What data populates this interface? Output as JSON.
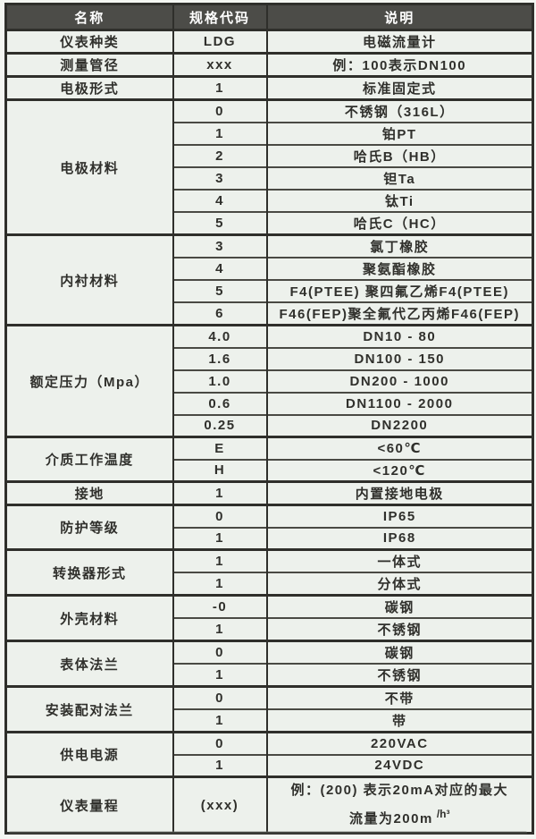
{
  "colors": {
    "header_bg": "#4c4c48",
    "header_text": "#ffffff",
    "cell_bg": "#edf1ec",
    "text": "#30302c",
    "border": "#2f2f2b"
  },
  "table": {
    "headers": [
      "名称",
      "规格代码",
      "说明"
    ],
    "groups": [
      {
        "name": "仪表种类",
        "rows": [
          [
            "LDG",
            "电磁流量计"
          ]
        ]
      },
      {
        "name": "测量管径",
        "rows": [
          [
            "xxx",
            "例：100表示DN100"
          ]
        ]
      },
      {
        "name": "电极形式",
        "rows": [
          [
            "1",
            "标准固定式"
          ]
        ]
      },
      {
        "name": "电极材料",
        "rows": [
          [
            "0",
            "不锈钢（316L）"
          ],
          [
            "1",
            "铂PT"
          ],
          [
            "2",
            "哈氏B（HB）"
          ],
          [
            "3",
            "钽Ta"
          ],
          [
            "4",
            "钛Ti"
          ],
          [
            "5",
            "哈氏C（HC）"
          ]
        ]
      },
      {
        "name": "内衬材料",
        "rows": [
          [
            "3",
            "氯丁橡胶"
          ],
          [
            "4",
            "聚氨酯橡胶"
          ],
          [
            "5",
            "F4(PTEE) 聚四氟乙烯F4(PTEE)"
          ],
          [
            "6",
            "F46(FEP)聚全氟代乙丙烯F46(FEP)"
          ]
        ]
      },
      {
        "name": "额定压力（Mpa）",
        "rows": [
          [
            "4.0",
            "DN10 - 80"
          ],
          [
            "1.6",
            "DN100 - 150"
          ],
          [
            "1.0",
            "DN200 - 1000"
          ],
          [
            "0.6",
            "DN1100 - 2000"
          ],
          [
            "0.25",
            "DN2200"
          ]
        ]
      },
      {
        "name": "介质工作温度",
        "rows": [
          [
            "E",
            "<60℃"
          ],
          [
            "H",
            "<120℃"
          ]
        ]
      },
      {
        "name": "接地",
        "rows": [
          [
            "1",
            "内置接地电极"
          ]
        ]
      },
      {
        "name": "防护等级",
        "rows": [
          [
            "0",
            "IP65"
          ],
          [
            "1",
            "IP68"
          ]
        ]
      },
      {
        "name": "转换器形式",
        "rows": [
          [
            "1",
            "一体式"
          ],
          [
            "1",
            "分体式"
          ]
        ]
      },
      {
        "name": "外壳材料",
        "rows": [
          [
            "-0",
            "碳钢"
          ],
          [
            "1",
            "不锈钢"
          ]
        ]
      },
      {
        "name": "表体法兰",
        "rows": [
          [
            "0",
            "碳钢"
          ],
          [
            "1",
            "不锈钢"
          ]
        ]
      },
      {
        "name": "安装配对法兰",
        "rows": [
          [
            "0",
            "不带"
          ],
          [
            "1",
            "带"
          ]
        ]
      },
      {
        "name": "供电电源",
        "rows": [
          [
            "0",
            "220VAC"
          ],
          [
            "1",
            "24VDC"
          ]
        ]
      },
      {
        "name": "仪表量程",
        "tall": true,
        "rows": [
          [
            "(xxx)",
            {
              "line1": "例：(200) 表示20mA对应的最大",
              "line2": "流量为200m",
              "sup": "/h³"
            }
          ]
        ]
      }
    ]
  }
}
